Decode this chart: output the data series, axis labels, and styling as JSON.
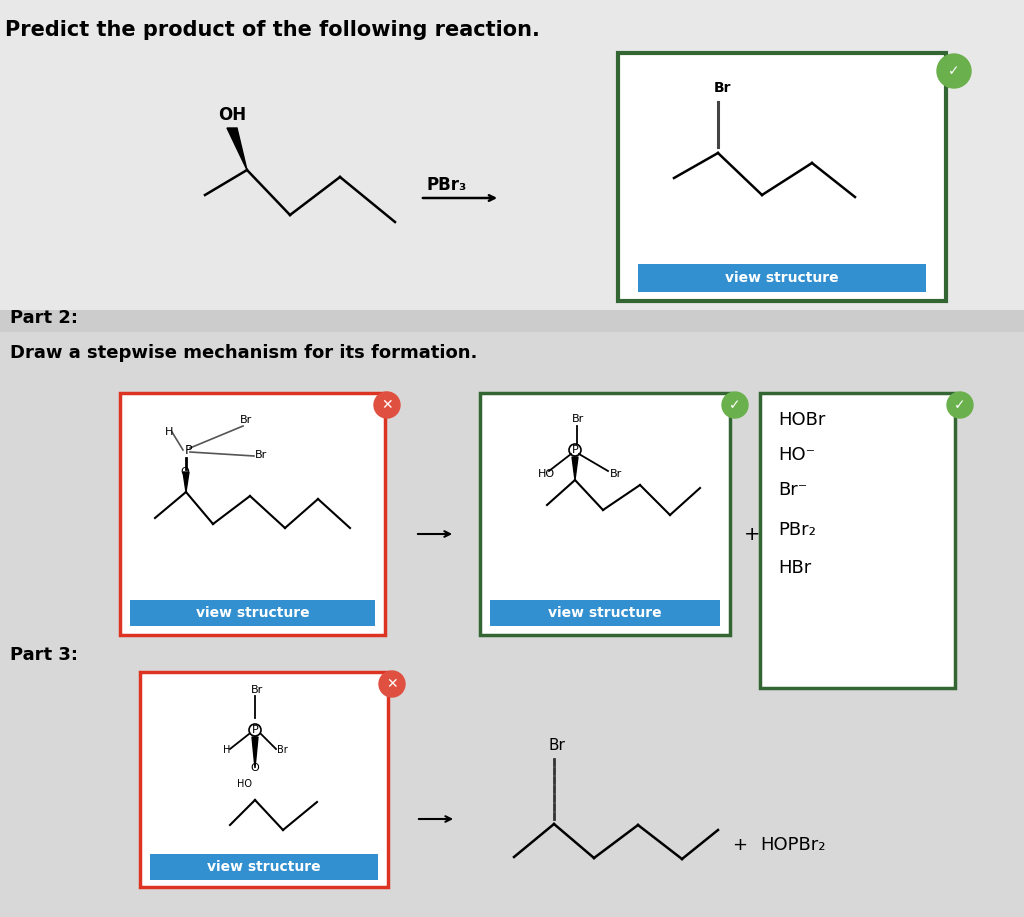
{
  "bg_color": "#d8d8d8",
  "top_bg": "#e8e8e8",
  "white": "#ffffff",
  "title": "Predict the product of the following reaction.",
  "part2_label": "Part 2:",
  "part2_instruction": "Draw a stepwise mechanism for its formation.",
  "part3_label": "Part 3:",
  "pbr3_label": "PBr₃",
  "view_structure": "view structure",
  "hopbr2_label": "HOPBr₂",
  "check_color": "#6ab04c",
  "x_color": "#e05040",
  "blue_btn": "#3390d0",
  "red_border": "#dd3322",
  "green_border": "#336633",
  "stripe_color": "#aabbd0",
  "part2_items_text": [
    "HOBr",
    "HO⁻",
    "Br⁻",
    "PBr₂",
    "HBr"
  ],
  "gray_band": "#cccccc"
}
